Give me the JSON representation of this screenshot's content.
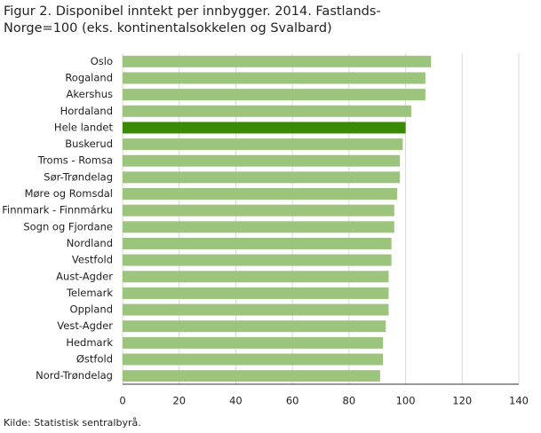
{
  "chart_data": {
    "type": "barh",
    "title": "Figur 2. Disponibel inntekt per innbygger. 2014. Fastlands-Norge=100 (eks. kontinentalsokkelen og Svalbard)",
    "source": "Kilde: Statistisk sentralbyrå.",
    "categories": [
      "Oslo",
      "Rogaland",
      "Akershus",
      "Hordaland",
      "Hele landet",
      "Buskerud",
      "Troms - Romsa",
      "Sør-Trøndelag",
      "Møre og Romsdal",
      "Finnmark - Finnmárku",
      "Sogn og Fjordane",
      "Nordland",
      "Vestfold",
      "Aust-Agder",
      "Telemark",
      "Oppland",
      "Vest-Agder",
      "Hedmark",
      "Østfold",
      "Nord-Trøndelag"
    ],
    "values": [
      109,
      107,
      107,
      102,
      100,
      99,
      98,
      98,
      97,
      96,
      96,
      95,
      95,
      94,
      94,
      94,
      93,
      92,
      92,
      91
    ],
    "colors": [
      "#9cc47c",
      "#9cc47c",
      "#9cc47c",
      "#9cc47c",
      "#3b8a06",
      "#9cc47c",
      "#9cc47c",
      "#9cc47c",
      "#9cc47c",
      "#9cc47c",
      "#9cc47c",
      "#9cc47c",
      "#9cc47c",
      "#9cc47c",
      "#9cc47c",
      "#9cc47c",
      "#9cc47c",
      "#9cc47c",
      "#9cc47c",
      "#9cc47c"
    ],
    "xlim": [
      0,
      140
    ],
    "xticks": [
      0,
      20,
      40,
      60,
      80,
      100,
      120,
      140
    ],
    "grid": true
  }
}
